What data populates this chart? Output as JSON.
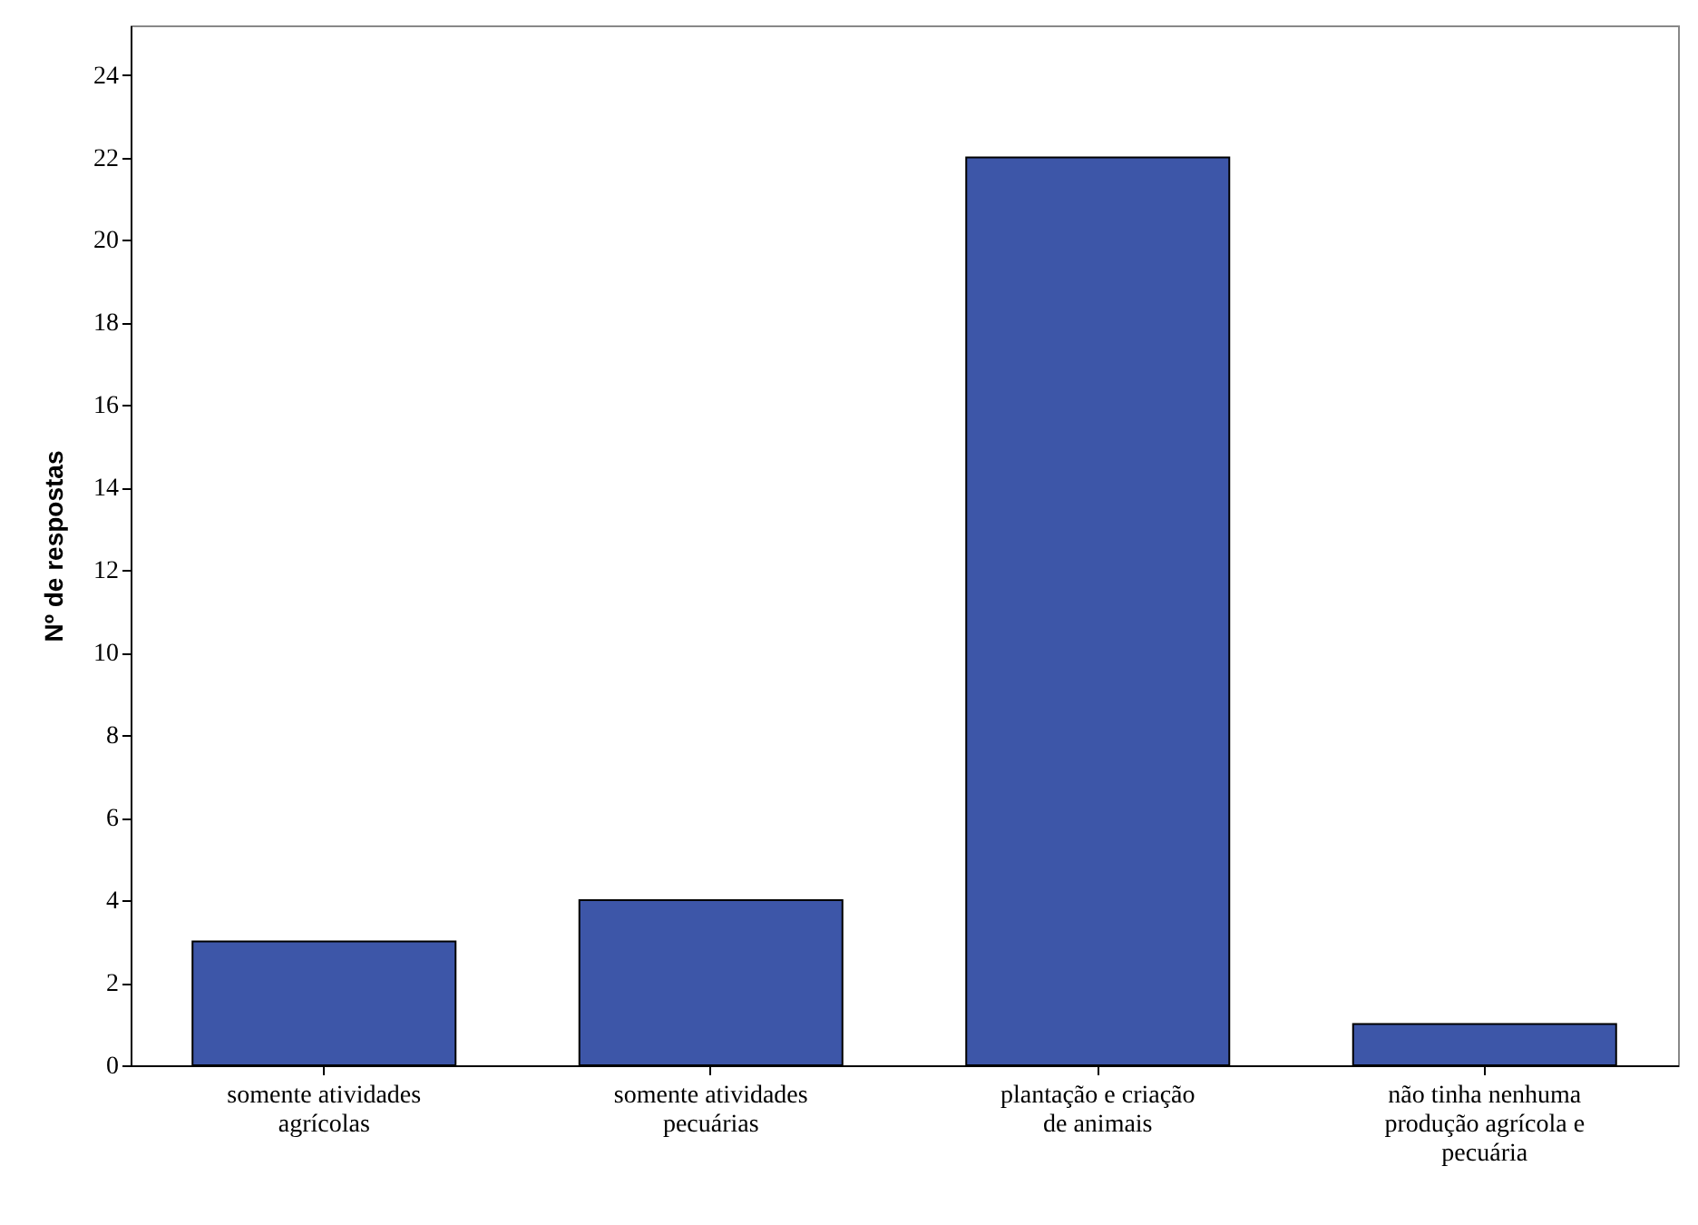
{
  "chart_data": {
    "type": "bar",
    "ylabel": "Nº de respostas",
    "categories": [
      "somente atividades agrícolas",
      "somente atividades pecuárias",
      "plantação e criação de animais",
      "não tinha nenhuma produção agrícola e pecuária"
    ],
    "values": [
      3,
      4,
      22,
      1
    ],
    "color": "#3d56a8",
    "ylim": [
      0,
      25.2
    ],
    "yticks": [
      0,
      2,
      4,
      6,
      8,
      10,
      12,
      14,
      16,
      18,
      20,
      22,
      24
    ],
    "grid": false
  }
}
